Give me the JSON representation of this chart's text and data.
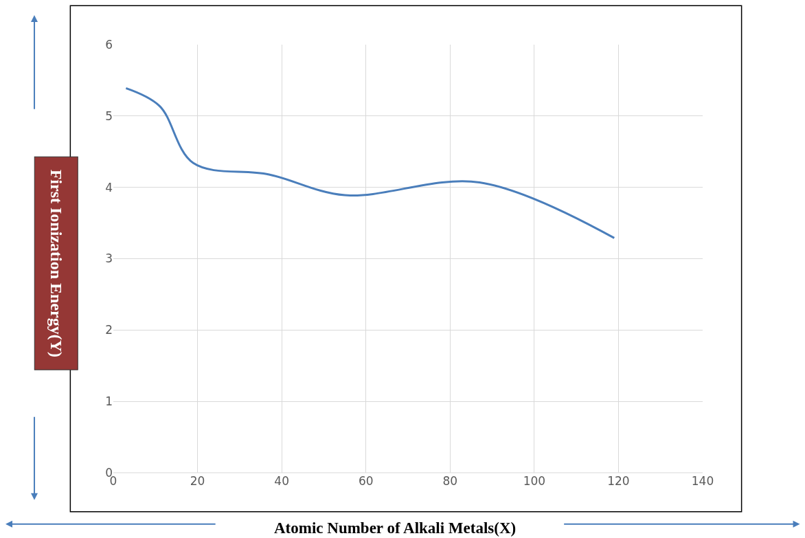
{
  "chart_data": {
    "type": "line",
    "xlabel": "Atomic Number of Alkali Metals(X)",
    "ylabel": "First Ionization Energy(Y)",
    "x": [
      3,
      11,
      19,
      37,
      55,
      87,
      119
    ],
    "series": [
      {
        "color": "#4a7ebb",
        "values": [
          5.39,
          5.14,
          4.34,
          4.18,
          3.89,
          4.07,
          3.29
        ]
      }
    ],
    "xlim": [
      0,
      140
    ],
    "xticks": [
      0,
      20,
      40,
      60,
      80,
      100,
      120,
      140
    ],
    "ylim": [
      0,
      6
    ],
    "yticks": [
      0,
      1,
      2,
      3,
      4,
      5,
      6
    ],
    "grid": true,
    "marker": "none",
    "line_style": "solid"
  }
}
